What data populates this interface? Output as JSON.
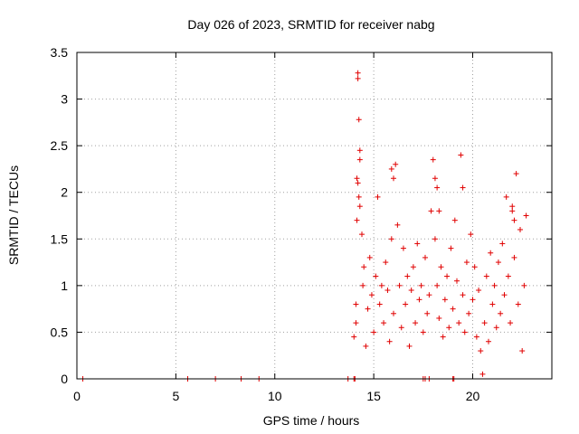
{
  "chart_data": {
    "type": "scatter",
    "title": "Day 026 of 2023, SRMTID for receiver nabg",
    "xlabel": "GPS time / hours",
    "ylabel": "SRMTID / TECUs",
    "xlim": [
      0,
      24.0
    ],
    "ylim": [
      0,
      3.5
    ],
    "xticks": [
      0,
      5,
      10,
      15,
      20
    ],
    "xtick_labels": [
      "0",
      "5",
      "10",
      "15",
      "20"
    ],
    "yticks": [
      0,
      0.5,
      1,
      1.5,
      2,
      2.5,
      3,
      3.5
    ],
    "ytick_labels": [
      "0",
      "0.5",
      "1",
      "1.5",
      "2",
      "2.5",
      "3",
      "3.5"
    ],
    "grid": true,
    "marker": "+",
    "color": "#e00000",
    "x": [
      0.3,
      5.6,
      7.0,
      8.3,
      9.2,
      13.7,
      14.0,
      14.1,
      14.1,
      14.15,
      14.2,
      14.2,
      14.25,
      14.3,
      14.3,
      14.4,
      14.45,
      14.5,
      14.6,
      14.7,
      14.8,
      14.9,
      15.0,
      15.1,
      15.2,
      15.3,
      15.4,
      15.5,
      15.6,
      15.7,
      15.8,
      15.9,
      16.0,
      16.1,
      16.2,
      16.3,
      16.4,
      16.5,
      16.6,
      16.7,
      16.8,
      16.9,
      17.0,
      17.1,
      17.2,
      17.3,
      17.4,
      17.5,
      17.6,
      17.7,
      17.8,
      17.9,
      18.0,
      18.1,
      18.2,
      18.3,
      18.4,
      18.5,
      18.6,
      18.7,
      18.8,
      18.9,
      19.0,
      19.1,
      19.2,
      19.3,
      19.4,
      19.5,
      19.6,
      19.7,
      19.8,
      19.9,
      20.0,
      20.1,
      20.2,
      20.3,
      20.4,
      20.5,
      20.6,
      20.7,
      20.8,
      20.9,
      21.0,
      21.1,
      21.2,
      21.3,
      21.4,
      21.5,
      21.6,
      21.7,
      21.8,
      21.9,
      22.0,
      22.1,
      22.2,
      22.3,
      22.4,
      22.5,
      22.6,
      22.7,
      14.15,
      14.2,
      14.25,
      14.3,
      15.9,
      16.0,
      18.1,
      18.2,
      18.3,
      19.5,
      22.0,
      22.1,
      17.5,
      17.6,
      17.8,
      19.0,
      19.05,
      14.0,
      14.05
    ],
    "y": [
      0.0,
      0.0,
      0.0,
      0.0,
      0.0,
      0.0,
      0.45,
      0.6,
      0.8,
      1.7,
      3.28,
      3.22,
      2.78,
      2.45,
      2.35,
      1.55,
      1.0,
      1.2,
      0.35,
      0.75,
      1.3,
      0.9,
      0.5,
      1.1,
      1.95,
      0.8,
      1.0,
      0.6,
      1.25,
      0.95,
      0.4,
      1.5,
      0.7,
      2.3,
      1.65,
      1.0,
      0.55,
      1.4,
      0.8,
      1.1,
      0.35,
      0.95,
      1.2,
      0.6,
      1.45,
      0.85,
      1.0,
      0.5,
      1.3,
      0.7,
      0.9,
      1.8,
      2.35,
      1.5,
      1.0,
      0.65,
      1.2,
      0.45,
      0.85,
      1.1,
      0.55,
      1.4,
      0.75,
      1.7,
      1.05,
      0.6,
      2.4,
      0.9,
      0.5,
      1.25,
      0.7,
      1.55,
      0.85,
      1.2,
      0.45,
      0.95,
      0.3,
      0.05,
      0.6,
      1.1,
      0.4,
      1.35,
      0.8,
      1.0,
      0.55,
      1.25,
      0.7,
      1.45,
      0.9,
      1.95,
      1.1,
      0.6,
      1.8,
      1.3,
      2.2,
      0.8,
      1.6,
      0.3,
      1.0,
      1.75,
      2.15,
      2.1,
      1.95,
      1.85,
      2.25,
      2.15,
      2.15,
      2.05,
      1.8,
      2.05,
      1.85,
      1.7,
      0.0,
      0.0,
      0.0,
      0.0,
      0.0,
      0.0,
      0.0
    ]
  }
}
